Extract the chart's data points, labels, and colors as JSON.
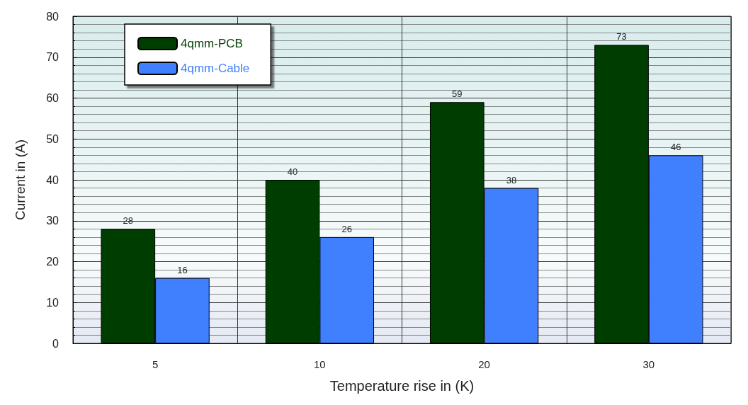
{
  "chart_data": {
    "type": "bar",
    "xlabel": "Temperature rise in (K)",
    "ylabel": "Current in (A)",
    "categories": [
      "5",
      "10",
      "20",
      "30"
    ],
    "series": [
      {
        "name": "4qmm-PCB",
        "color": "#003d00",
        "values": [
          28,
          40,
          59,
          73
        ]
      },
      {
        "name": "4qmm-Cable",
        "color": "#4080ff",
        "values": [
          16,
          26,
          38,
          46
        ]
      }
    ],
    "ylim": [
      0,
      80
    ],
    "yticks": [
      0,
      10,
      20,
      30,
      40,
      50,
      60,
      70,
      80
    ],
    "grid": true,
    "legend": "top left",
    "data_labels": true
  }
}
